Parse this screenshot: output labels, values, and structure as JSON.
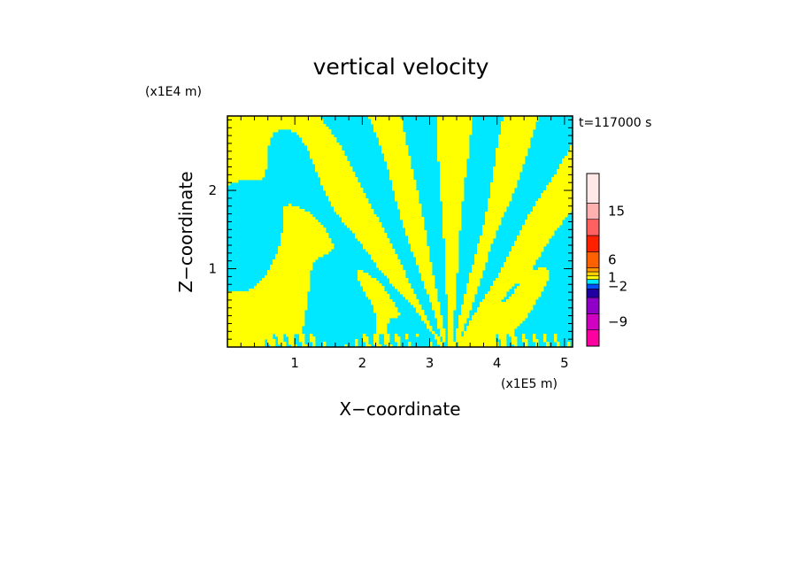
{
  "chart_data": {
    "type": "heatmap",
    "title": "vertical velocity",
    "xlabel": "X−coordinate",
    "ylabel": "Z−coordinate",
    "x_unit": "(x1E5 m)",
    "y_unit": "(x1E4 m)",
    "time_label": "t=117000 s",
    "xlim": [
      0,
      5.12
    ],
    "ylim": [
      0,
      2.95
    ],
    "x_ticks": [
      {
        "value": 1,
        "label": "1"
      },
      {
        "value": 2,
        "label": "2"
      },
      {
        "value": 3,
        "label": "3"
      },
      {
        "value": 4,
        "label": "4"
      },
      {
        "value": 5,
        "label": "5"
      }
    ],
    "y_ticks": [
      {
        "value": 1,
        "label": "1"
      },
      {
        "value": 2,
        "label": "2"
      }
    ],
    "field": {
      "center_x": 3.3,
      "description_values": "two-level field: positive (yellow) and negative (cyan) vertical velocity, wave fan above source near x=3.3"
    },
    "colorbar": {
      "levels": [
        {
          "color": "#ff00a0"
        },
        {
          "color": "#d000c0"
        },
        {
          "color": "#9000c8"
        },
        {
          "color": "#2000a0"
        },
        {
          "color": "#0050ff"
        },
        {
          "color": "#00e8ff"
        },
        {
          "color": "#ffff00"
        },
        {
          "color": "#ffd000"
        },
        {
          "color": "#ff9800"
        },
        {
          "color": "#ff6000"
        },
        {
          "color": "#ff2000"
        },
        {
          "color": "#ff6060"
        },
        {
          "color": "#ffb0b0"
        },
        {
          "color": "#ffe8e8"
        }
      ],
      "labels": [
        {
          "value": 15,
          "label": "15"
        },
        {
          "value": 6,
          "label": "6"
        },
        {
          "value": 1,
          "label": "1"
        },
        {
          "value": -2,
          "label": "−2"
        },
        {
          "value": -9,
          "label": "−9"
        }
      ]
    },
    "colors": {
      "positive": "#ffff00",
      "negative": "#00e8ff"
    }
  }
}
